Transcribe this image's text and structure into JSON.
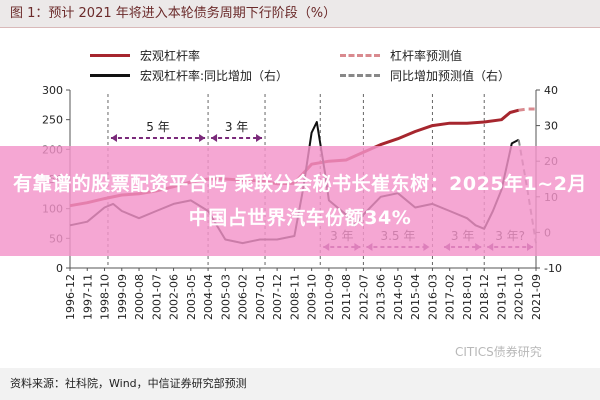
{
  "figure": {
    "title": "图 1：预计 2021 年将进入本轮债务周期下行阶段（%）",
    "source": "资料来源：社科院，Wind，中信证券研究部预测",
    "watermark": "CITICS债券研究"
  },
  "banner": {
    "text": "有靠谱的股票配资平台吗 乘联分会秘书长崔东树：2025年1~2月中国占世界汽车份额34%"
  },
  "colors": {
    "leverage": "#a6262e",
    "leverage_forecast": "#d98a8f",
    "yoy": "#111111",
    "yoy_forecast": "#888888",
    "period_arrow": "#7a2a7a",
    "banner": "#f394c9"
  },
  "legend": [
    {
      "label": "宏观杠杆率",
      "style": "solid",
      "color_key": "leverage"
    },
    {
      "label": "杠杆率预测值",
      "style": "dashed",
      "color_key": "leverage_forecast"
    },
    {
      "label": "宏观杠杆率:同比增加（右）",
      "style": "solid",
      "color_key": "yoy"
    },
    {
      "label": "同比增加预测值（右）",
      "style": "dashed",
      "color_key": "yoy_forecast"
    }
  ],
  "chart_data": {
    "type": "line",
    "x_ticks": [
      "1996-12",
      "1997-11",
      "1998-10",
      "1999-09",
      "2000-08",
      "2001-07",
      "2002-06",
      "2003-05",
      "2004-04",
      "2005-03",
      "2006-02",
      "2007-01",
      "2007-12",
      "2008-11",
      "2009-10",
      "2010-09",
      "2011-08",
      "2012-07",
      "2013-06",
      "2014-05",
      "2015-04",
      "2016-03",
      "2017-02",
      "2018-01",
      "2018-12",
      "2019-11",
      "2020-10",
      "2021-09"
    ],
    "y_left": {
      "ticks": [
        0,
        50,
        100,
        150,
        200,
        250,
        300
      ],
      "range": [
        0,
        300
      ]
    },
    "y_right": {
      "ticks": [
        -10,
        0,
        10,
        20,
        30,
        40
      ],
      "range": [
        -10,
        40
      ]
    },
    "series": [
      {
        "name": "宏观杠杆率",
        "axis": "left",
        "style": "solid",
        "points": [
          [
            0,
            105
          ],
          [
            1,
            110
          ],
          [
            2,
            117
          ],
          [
            3,
            123
          ],
          [
            4,
            125
          ],
          [
            5,
            130
          ],
          [
            6,
            137
          ],
          [
            7,
            145
          ],
          [
            8,
            150
          ],
          [
            9,
            150
          ],
          [
            10,
            148
          ],
          [
            11,
            147
          ],
          [
            12,
            142
          ],
          [
            13,
            143
          ],
          [
            14,
            175
          ],
          [
            15,
            180
          ],
          [
            16,
            182
          ],
          [
            17,
            195
          ],
          [
            18,
            208
          ],
          [
            19,
            218
          ],
          [
            20,
            230
          ],
          [
            21,
            240
          ],
          [
            22,
            244
          ],
          [
            23,
            244
          ],
          [
            24,
            246
          ],
          [
            25,
            250
          ],
          [
            25.5,
            262
          ],
          [
            26,
            266
          ]
        ]
      },
      {
        "name": "杠杆率预测值",
        "axis": "left",
        "style": "dashed",
        "points": [
          [
            26,
            266
          ],
          [
            26.5,
            268
          ],
          [
            27,
            268
          ]
        ]
      },
      {
        "name": "宏观杠杆率:同比增加（右）",
        "axis": "right",
        "style": "solid",
        "points": [
          [
            0,
            2
          ],
          [
            1,
            3
          ],
          [
            2,
            7
          ],
          [
            2.5,
            8
          ],
          [
            3,
            6
          ],
          [
            4,
            4
          ],
          [
            5,
            6
          ],
          [
            6,
            8
          ],
          [
            7,
            9
          ],
          [
            8,
            6
          ],
          [
            9,
            -2
          ],
          [
            10,
            -3
          ],
          [
            11,
            -2
          ],
          [
            12,
            -2
          ],
          [
            13,
            -1
          ],
          [
            13.5,
            12
          ],
          [
            14,
            28
          ],
          [
            14.3,
            31
          ],
          [
            14.8,
            16
          ],
          [
            15,
            9
          ],
          [
            16,
            5
          ],
          [
            16.5,
            2
          ],
          [
            17,
            5
          ],
          [
            18,
            10
          ],
          [
            19,
            11
          ],
          [
            20,
            7
          ],
          [
            21,
            8
          ],
          [
            22,
            6
          ],
          [
            23,
            4
          ],
          [
            23.5,
            2
          ],
          [
            24,
            1
          ],
          [
            24.5,
            6
          ],
          [
            25,
            12
          ],
          [
            25.6,
            25
          ],
          [
            26,
            26
          ]
        ]
      },
      {
        "name": "同比增加预测值（右）",
        "axis": "right",
        "style": "dashed",
        "points": [
          [
            26,
            26
          ],
          [
            26.5,
            12
          ],
          [
            27,
            -3
          ]
        ]
      }
    ],
    "periods": [
      {
        "label": "5 年",
        "from": 2.2,
        "to": 8.0,
        "side": "top"
      },
      {
        "label": "3 年",
        "from": 8.0,
        "to": 11.3,
        "side": "top"
      },
      {
        "label": "3 年",
        "from": 14.5,
        "to": 17.0,
        "side": "bottom"
      },
      {
        "label": "3.5 年",
        "from": 17.0,
        "to": 21.0,
        "side": "bottom"
      },
      {
        "label": "3 年",
        "from": 21.5,
        "to": 24.0,
        "side": "bottom"
      },
      {
        "label": "3 年?",
        "from": 24.0,
        "to": 27.0,
        "side": "bottom"
      }
    ]
  }
}
